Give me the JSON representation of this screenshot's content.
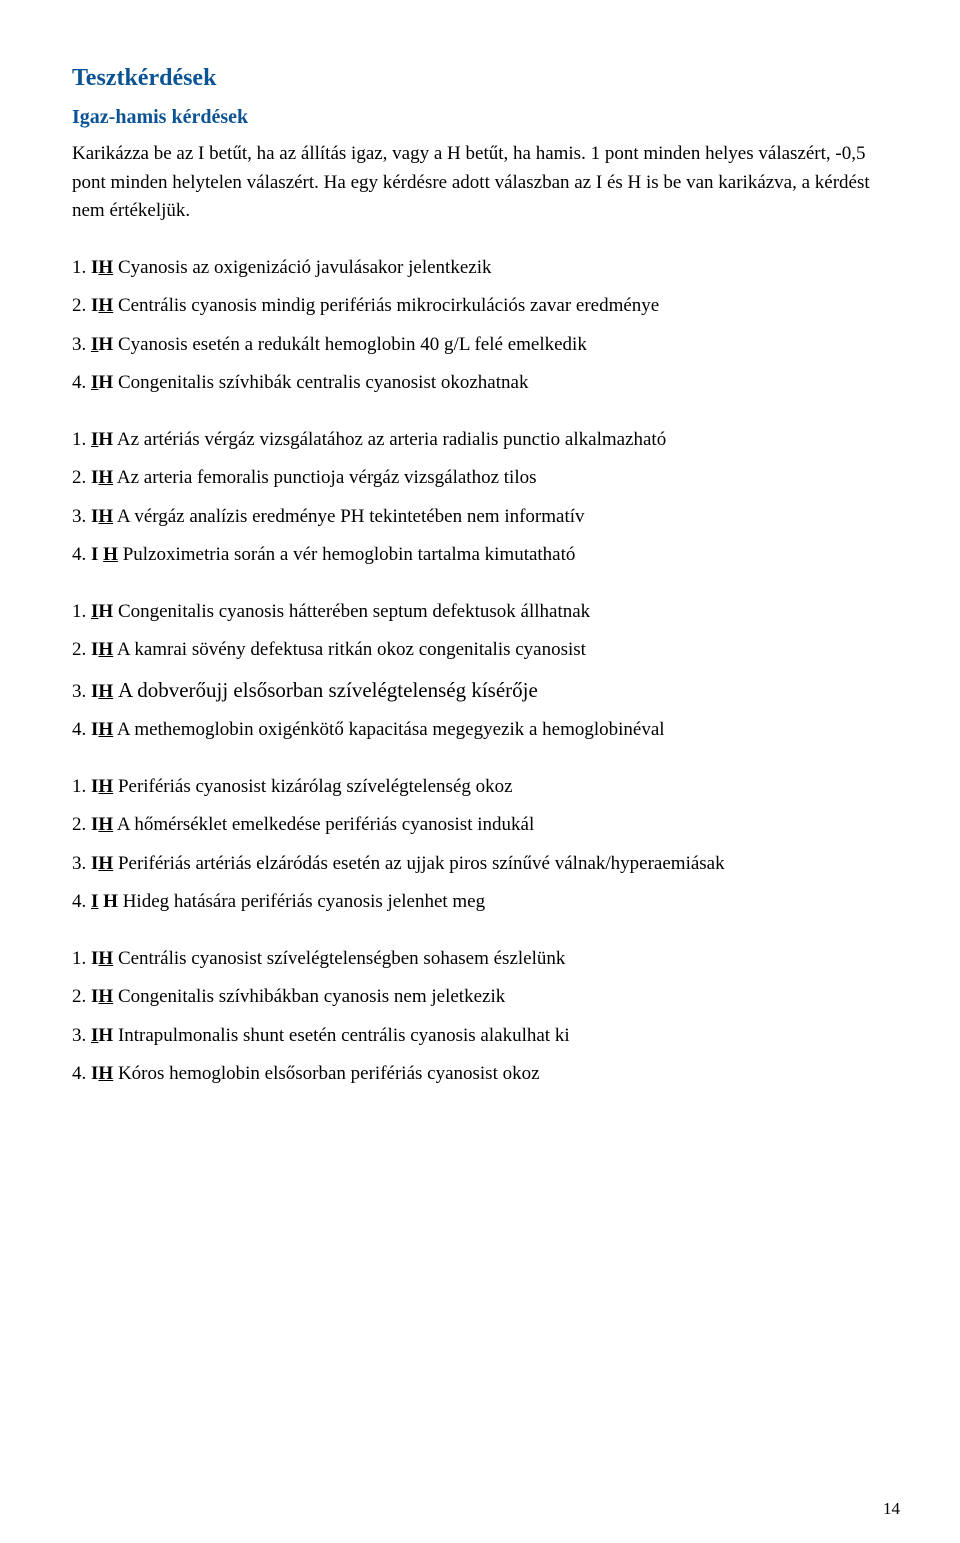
{
  "title": "Tesztkérdések",
  "subtitle": "Igaz-hamis kérdések",
  "intro1": "Karikázza be az I betűt, ha az állítás igaz, vagy a H betűt, ha hamis. 1 pont minden helyes válaszért, -0,5 pont minden helytelen válaszért. Ha egy kérdésre adott válaszban az I és H is be van karikázva, a kérdést nem értékeljük.",
  "blocks": [
    {
      "items": [
        {
          "num": "1.",
          "i_ul": false,
          "h_ul": true,
          "text": "Cyanosis az oxigenizáció javulásakor jelentkezik"
        },
        {
          "num": "2.",
          "i_ul": false,
          "h_ul": true,
          "text": "Centrális cyanosis mindig perifériás mikrocirkulációs zavar eredménye"
        },
        {
          "num": "3.",
          "i_ul": true,
          "h_ul": false,
          "text": "Cyanosis esetén a redukált hemoglobin 40 g/L felé emelkedik"
        },
        {
          "num": "4.",
          "i_ul": true,
          "h_ul": false,
          "text": "Congenitalis szívhibák centralis cyanosist okozhatnak"
        }
      ]
    },
    {
      "items": [
        {
          "num": "1.",
          "i_ul": true,
          "h_ul": false,
          "text": "Az artériás vérgáz vizsgálatához az arteria radialis punctio alkalmazható"
        },
        {
          "num": "2.",
          "i_ul": false,
          "h_ul": true,
          "text": "Az arteria femoralis punctioja vérgáz vizsgálathoz tilos"
        },
        {
          "num": "3.",
          "i_ul": false,
          "h_ul": true,
          "text": "A vérgáz analízis eredménye  PH tekintetében nem informatív"
        },
        {
          "num": "4.",
          "i_ul": false,
          "h_ul": true,
          "sep": true,
          "text": "Pulzoximetria során a vér hemoglobin tartalma kimutatható"
        }
      ]
    },
    {
      "items": [
        {
          "num": "1.",
          "i_ul": true,
          "h_ul": false,
          "text": "Congenitalis cyanosis hátterében septum defektusok állhatnak"
        },
        {
          "num": "2.",
          "i_ul": false,
          "h_ul": true,
          "text": "A kamrai sövény defektusa ritkán okoz congenitalis cyanosist"
        },
        {
          "num": "3.",
          "i_ul": false,
          "h_ul": true,
          "big": true,
          "text": "A dobverőujj elsősorban szívelégtelenség kísérője"
        },
        {
          "num": "4.",
          "i_ul": false,
          "h_ul": true,
          "text": "A methemoglobin oxigénkötő kapacitása megegyezik a hemoglobinéval"
        }
      ]
    },
    {
      "items": [
        {
          "num": "1.",
          "i_ul": false,
          "h_ul": true,
          "text": "Perifériás cyanosist kizárólag szívelégtelenség okoz"
        },
        {
          "num": "2.",
          "i_ul": false,
          "h_ul": true,
          "text": "A hőmérséklet emelkedése perifériás cyanosist indukál"
        },
        {
          "num": "3.",
          "i_ul": false,
          "h_ul": true,
          "text": "Perifériás artériás elzáródás esetén az ujjak piros színűvé válnak/hyperaemiásak"
        },
        {
          "num": "4.",
          "i_ul": true,
          "h_ul": false,
          "sep": true,
          "text": "Hideg hatására perifériás cyanosis jelenhet meg"
        }
      ]
    },
    {
      "items": [
        {
          "num": "1.",
          "i_ul": false,
          "h_ul": true,
          "text": "Centrális cyanosist szívelégtelenségben sohasem észlelünk"
        },
        {
          "num": "2.",
          "i_ul": false,
          "h_ul": true,
          "text": "Congenitalis szívhibákban cyanosis nem jeletkezik"
        },
        {
          "num": "3.",
          "i_ul": true,
          "h_ul": false,
          "text": "Intrapulmonalis shunt esetén centrális cyanosis alakulhat ki"
        },
        {
          "num": "4.",
          "i_ul": false,
          "h_ul": true,
          "text": "Kóros hemoglobin elsősorban perifériás cyanosist okoz"
        }
      ]
    }
  ],
  "pageNumber": "14",
  "colors": {
    "heading": "#0b5394",
    "text": "#000000",
    "background": "#ffffff"
  }
}
